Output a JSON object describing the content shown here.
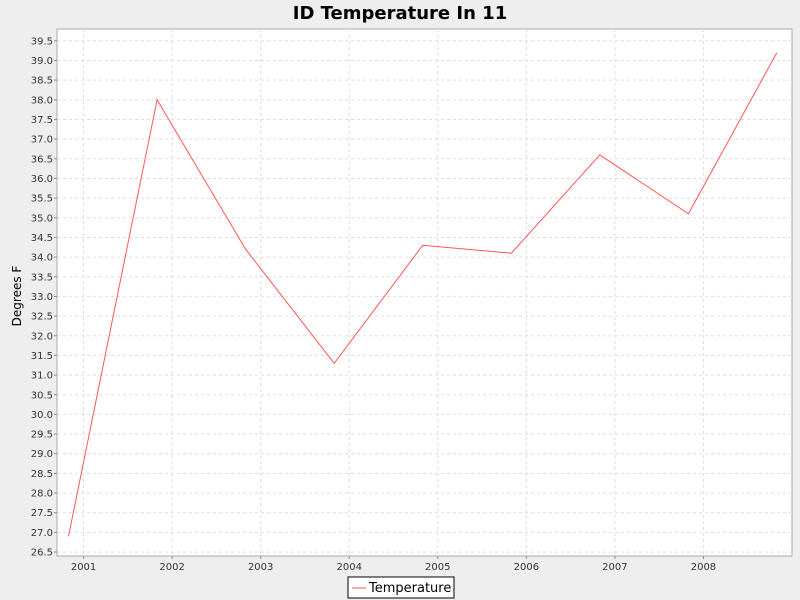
{
  "chart_data": {
    "type": "line",
    "title": "ID Temperature In 11",
    "xlabel": "",
    "ylabel": "Degrees F",
    "x_tick_labels": [
      "2001",
      "2002",
      "2003",
      "2004",
      "2005",
      "2006",
      "2007",
      "2008"
    ],
    "xlim": [
      2000.7,
      2009.0
    ],
    "ylim": [
      26.4,
      39.8
    ],
    "y_tick_step": 0.5,
    "y_tick_labels": [
      "26.5",
      "27.0",
      "27.5",
      "28.0",
      "28.5",
      "29.0",
      "29.5",
      "30.0",
      "30.5",
      "31.0",
      "31.5",
      "32.0",
      "32.5",
      "33.0",
      "33.5",
      "34.0",
      "34.5",
      "35.0",
      "35.5",
      "36.0",
      "36.5",
      "37.0",
      "37.5",
      "38.0",
      "38.5",
      "39.0",
      "39.5"
    ],
    "grid": true,
    "legend_position": "bottom-center",
    "series": [
      {
        "name": "Temperature",
        "color": "#ff5555",
        "x": [
          2000.83,
          2001.83,
          2002.83,
          2003.83,
          2004.83,
          2005.83,
          2006.83,
          2007.83,
          2008.83
        ],
        "values": [
          26.9,
          38.0,
          34.2,
          31.3,
          34.3,
          34.1,
          36.6,
          35.1,
          39.2
        ]
      }
    ]
  }
}
